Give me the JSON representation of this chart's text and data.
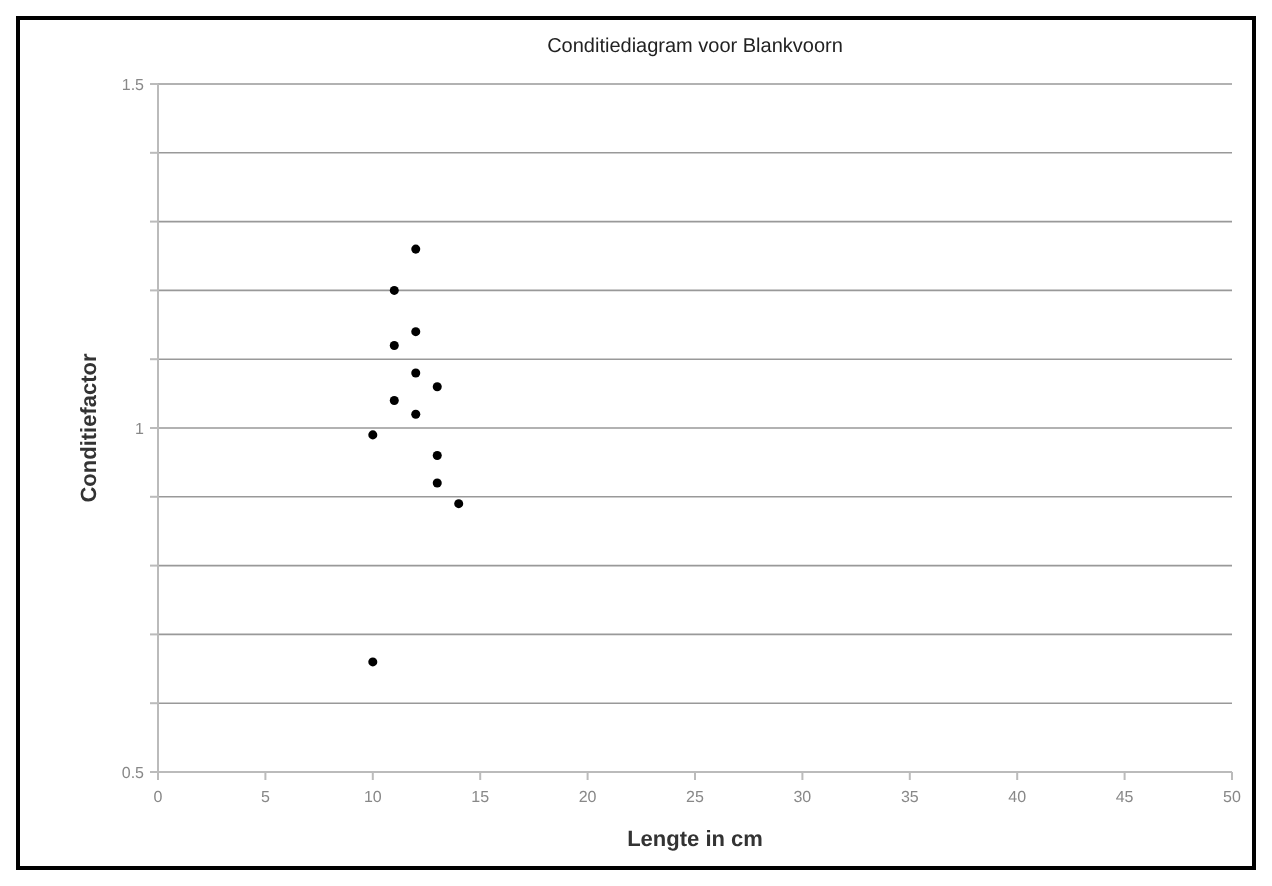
{
  "chart_data": {
    "type": "scatter",
    "title": "Conditiediagram voor Blankvoorn",
    "xlabel": "Lengte in cm",
    "ylabel": "Conditiefactor",
    "x": [
      12,
      11,
      12,
      11,
      12,
      13,
      11,
      12,
      10,
      13,
      13,
      14,
      10
    ],
    "values": [
      1.26,
      1.2,
      1.14,
      1.12,
      1.08,
      1.06,
      1.04,
      1.02,
      0.99,
      0.96,
      0.92,
      0.89,
      0.66
    ],
    "color": "#000000",
    "marker": "circle",
    "xlim": [
      0,
      50
    ],
    "xticks": [
      0,
      5,
      10,
      15,
      20,
      25,
      30,
      35,
      40,
      45,
      50
    ],
    "ylim": [
      0.5,
      1.5
    ],
    "yticks": [
      0.5,
      {
        "value": 0.6,
        "label": null
      },
      {
        "value": 0.7,
        "label": null
      },
      {
        "value": 0.8,
        "label": null
      },
      {
        "value": 0.9,
        "label": null
      },
      1,
      {
        "value": 1.1,
        "label": null
      },
      {
        "value": 1.2,
        "label": null
      },
      {
        "value": 1.3,
        "label": null
      },
      {
        "value": 1.4,
        "label": null
      },
      1.5
    ],
    "grid": "y"
  }
}
